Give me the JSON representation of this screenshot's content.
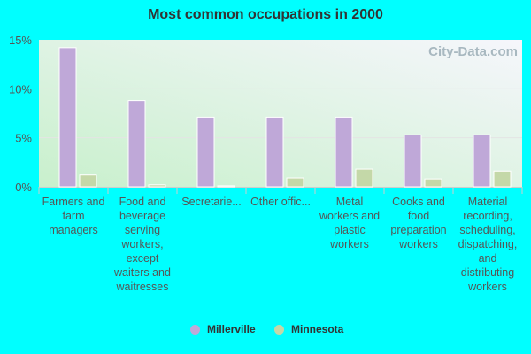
{
  "chart_data": {
    "type": "bar",
    "title": "Most common occupations in 2000",
    "categories": [
      "Farmers and farm managers",
      "Food and beverage serving workers, except waiters and waitresses",
      "Secretarie...",
      "Other offic...",
      "Metal workers and plastic workers",
      "Cooks and food preparation workers",
      "Material recording, scheduling, dispatching, and distributing workers"
    ],
    "series": [
      {
        "name": "Millerville",
        "color": "#bfa8d8",
        "values": [
          14.2,
          8.8,
          7.1,
          7.1,
          7.1,
          5.3,
          5.3
        ]
      },
      {
        "name": "Minnesota",
        "color": "#c4d8a8",
        "values": [
          1.2,
          0.2,
          0.1,
          0.9,
          1.8,
          0.8,
          1.6
        ]
      }
    ],
    "yticks": [
      "0%",
      "5%",
      "10%",
      "15%"
    ],
    "ylim": [
      0,
      15
    ],
    "grid": true,
    "legend": "bottom",
    "watermark": "City-Data.com"
  }
}
